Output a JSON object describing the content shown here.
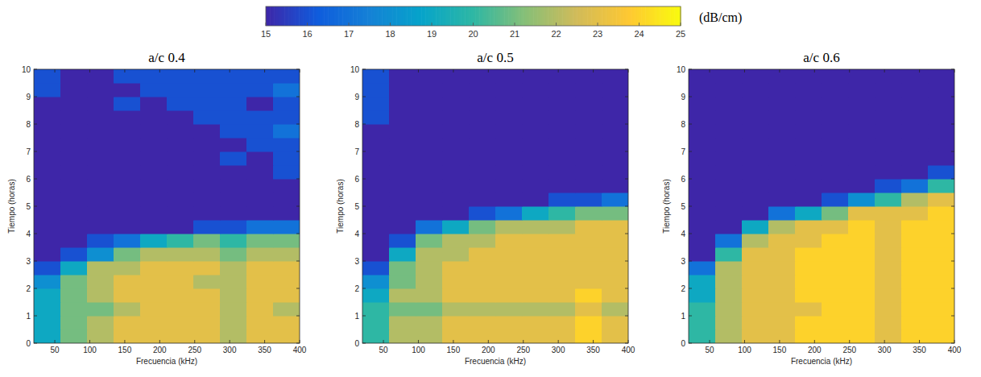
{
  "chart_data": [
    {
      "type": "heatmap",
      "title": "a/c 0.4",
      "x_label": "Frecuencia (kHz)",
      "y_label": "Tiempo (horas)",
      "xlim": [
        20,
        400
      ],
      "ylim": [
        0,
        10
      ],
      "xticks": [
        50,
        100,
        150,
        200,
        250,
        300,
        350,
        400
      ],
      "yticks": [
        0,
        1,
        2,
        3,
        4,
        5,
        6,
        7,
        8,
        9,
        10
      ],
      "x_edges": [
        20,
        58,
        96,
        134,
        172,
        210,
        248,
        286,
        324,
        362,
        400
      ],
      "y_edges": [
        0,
        0.5,
        1,
        1.5,
        2,
        2.5,
        3,
        3.5,
        4,
        4.5,
        5,
        5.5,
        6,
        6.5,
        7,
        7.5,
        8,
        8.5,
        9,
        9.5,
        10
      ],
      "values": [
        [
          19,
          21,
          22,
          23,
          23,
          23,
          23,
          22,
          23,
          23
        ],
        [
          19,
          21,
          22,
          23,
          23,
          23,
          23,
          22,
          23,
          23
        ],
        [
          19,
          21,
          21,
          22,
          23,
          23,
          23,
          22,
          23,
          22
        ],
        [
          19,
          21,
          22,
          23,
          23,
          23,
          23,
          22,
          23,
          23
        ],
        [
          18,
          21,
          22,
          23,
          23,
          23,
          22,
          22,
          23,
          23
        ],
        [
          16,
          19,
          22,
          22,
          23,
          23,
          23,
          22,
          23,
          23
        ],
        [
          15,
          16,
          18,
          21,
          22,
          22,
          22,
          21,
          22,
          22
        ],
        [
          15,
          15,
          16,
          17,
          19,
          20,
          21,
          20,
          21,
          21
        ],
        [
          15,
          15,
          15,
          15,
          15,
          15,
          16,
          16,
          17,
          17
        ],
        [
          15,
          15,
          15,
          15,
          15,
          15,
          15,
          15,
          15,
          15
        ],
        [
          15,
          15,
          15,
          15,
          15,
          15,
          15,
          15,
          15,
          15
        ],
        [
          15,
          15,
          15,
          15,
          15,
          15,
          15,
          15,
          15,
          15
        ],
        [
          15,
          15,
          15,
          15,
          15,
          15,
          15,
          15,
          15,
          16
        ],
        [
          15,
          15,
          15,
          15,
          15,
          15,
          15,
          16,
          15,
          16
        ],
        [
          15,
          15,
          15,
          15,
          15,
          15,
          15,
          15,
          16,
          16
        ],
        [
          15,
          15,
          15,
          15,
          15,
          15,
          15,
          16,
          16,
          17
        ],
        [
          15,
          15,
          15,
          15,
          15,
          15,
          16,
          16,
          16,
          16
        ],
        [
          15,
          15,
          15,
          16,
          15,
          16,
          16,
          16,
          15,
          16
        ],
        [
          16,
          15,
          15,
          15,
          16,
          16,
          16,
          16,
          16,
          17
        ],
        [
          16,
          15,
          15,
          16,
          16,
          16,
          16,
          16,
          16,
          16
        ]
      ]
    },
    {
      "type": "heatmap",
      "title": "a/c 0.5",
      "x_label": "Frecuencia (kHz)",
      "y_label": "Tiempo (horas)",
      "xlim": [
        20,
        400
      ],
      "ylim": [
        0,
        10
      ],
      "xticks": [
        50,
        100,
        150,
        200,
        250,
        300,
        350,
        400
      ],
      "yticks": [
        0,
        1,
        2,
        3,
        4,
        5,
        6,
        7,
        8,
        9,
        10
      ],
      "x_edges": [
        20,
        58,
        96,
        134,
        172,
        210,
        248,
        286,
        324,
        362,
        400
      ],
      "y_edges": [
        0,
        0.5,
        1,
        1.5,
        2,
        2.5,
        3,
        3.5,
        4,
        4.5,
        5,
        5.5,
        6,
        6.5,
        7,
        7.5,
        8,
        8.5,
        9,
        9.5,
        10
      ],
      "values": [
        [
          20,
          22,
          22,
          23,
          23,
          23,
          23,
          23,
          24,
          23
        ],
        [
          20,
          22,
          22,
          23,
          23,
          23,
          23,
          23,
          24,
          23
        ],
        [
          20,
          21,
          21,
          22,
          22,
          22,
          22,
          22,
          23,
          22
        ],
        [
          19,
          22,
          22,
          23,
          23,
          23,
          23,
          23,
          24,
          23
        ],
        [
          18,
          21,
          22,
          23,
          23,
          23,
          23,
          23,
          23,
          23
        ],
        [
          16,
          21,
          22,
          23,
          23,
          23,
          23,
          23,
          23,
          23
        ],
        [
          15,
          19,
          22,
          22,
          23,
          23,
          23,
          23,
          23,
          23
        ],
        [
          15,
          16,
          21,
          22,
          22,
          23,
          23,
          23,
          23,
          23
        ],
        [
          15,
          15,
          17,
          19,
          21,
          22,
          22,
          22,
          23,
          23
        ],
        [
          15,
          15,
          15,
          15,
          16,
          17,
          19,
          20,
          21,
          21
        ],
        [
          15,
          15,
          15,
          15,
          15,
          15,
          15,
          16,
          16,
          17
        ],
        [
          15,
          15,
          15,
          15,
          15,
          15,
          15,
          15,
          15,
          15
        ],
        [
          15,
          15,
          15,
          15,
          15,
          15,
          15,
          15,
          15,
          15
        ],
        [
          15,
          15,
          15,
          15,
          15,
          15,
          15,
          15,
          15,
          15
        ],
        [
          15,
          15,
          15,
          15,
          15,
          15,
          15,
          15,
          15,
          15
        ],
        [
          15,
          15,
          15,
          15,
          15,
          15,
          15,
          15,
          15,
          15
        ],
        [
          16,
          15,
          15,
          15,
          15,
          15,
          15,
          15,
          15,
          15
        ],
        [
          16,
          15,
          15,
          15,
          15,
          15,
          15,
          15,
          15,
          15
        ],
        [
          16,
          15,
          15,
          15,
          15,
          15,
          15,
          15,
          15,
          15
        ],
        [
          16,
          15,
          15,
          15,
          15,
          15,
          15,
          15,
          15,
          15
        ]
      ]
    },
    {
      "type": "heatmap",
      "title": "a/c 0.6",
      "x_label": "Frecuencia (kHz)",
      "y_label": "Tiempo (horas)",
      "xlim": [
        20,
        400
      ],
      "ylim": [
        0,
        10
      ],
      "xticks": [
        50,
        100,
        150,
        200,
        250,
        300,
        350,
        400
      ],
      "yticks": [
        0,
        1,
        2,
        3,
        4,
        5,
        6,
        7,
        8,
        9,
        10
      ],
      "x_edges": [
        20,
        58,
        96,
        134,
        172,
        210,
        248,
        286,
        324,
        362,
        400
      ],
      "y_edges": [
        0,
        0.5,
        1,
        1.5,
        2,
        2.5,
        3,
        3.5,
        4,
        4.5,
        5,
        5.5,
        6,
        6.5,
        7,
        7.5,
        8,
        8.5,
        9,
        9.5,
        10
      ],
      "values": [
        [
          20,
          22,
          23,
          23,
          24,
          24,
          24,
          23,
          24,
          24
        ],
        [
          20,
          22,
          23,
          23,
          24,
          24,
          24,
          23,
          24,
          24
        ],
        [
          20,
          22,
          23,
          23,
          23,
          24,
          24,
          23,
          24,
          24
        ],
        [
          19,
          22,
          23,
          23,
          24,
          24,
          24,
          23,
          24,
          24
        ],
        [
          19,
          22,
          23,
          23,
          24,
          24,
          24,
          23,
          24,
          24
        ],
        [
          17,
          22,
          23,
          23,
          24,
          24,
          24,
          23,
          24,
          24
        ],
        [
          15,
          20,
          23,
          23,
          24,
          24,
          24,
          23,
          24,
          24
        ],
        [
          15,
          17,
          22,
          23,
          23,
          24,
          24,
          23,
          24,
          24
        ],
        [
          15,
          15,
          19,
          22,
          23,
          23,
          24,
          23,
          24,
          24
        ],
        [
          15,
          15,
          15,
          17,
          19,
          21,
          23,
          23,
          23,
          24
        ],
        [
          15,
          15,
          15,
          15,
          15,
          16,
          18,
          20,
          22,
          23
        ],
        [
          15,
          15,
          15,
          15,
          15,
          15,
          15,
          16,
          17,
          20
        ],
        [
          15,
          15,
          15,
          15,
          15,
          15,
          15,
          15,
          15,
          16
        ],
        [
          15,
          15,
          15,
          15,
          15,
          15,
          15,
          15,
          15,
          15
        ],
        [
          15,
          15,
          15,
          15,
          15,
          15,
          15,
          15,
          15,
          15
        ],
        [
          15,
          15,
          15,
          15,
          15,
          15,
          15,
          15,
          15,
          15
        ],
        [
          15,
          15,
          15,
          15,
          15,
          15,
          15,
          15,
          15,
          15
        ],
        [
          15,
          15,
          15,
          15,
          15,
          15,
          15,
          15,
          15,
          15
        ],
        [
          15,
          15,
          15,
          15,
          15,
          15,
          15,
          15,
          15,
          15
        ],
        [
          15,
          15,
          15,
          15,
          15,
          15,
          15,
          15,
          15,
          15
        ]
      ]
    }
  ],
  "colorbar": {
    "label": "(dB/cm)",
    "range": [
      15,
      25
    ],
    "ticks": [
      15,
      16,
      17,
      18,
      19,
      20,
      21,
      22,
      23,
      24,
      25
    ]
  }
}
